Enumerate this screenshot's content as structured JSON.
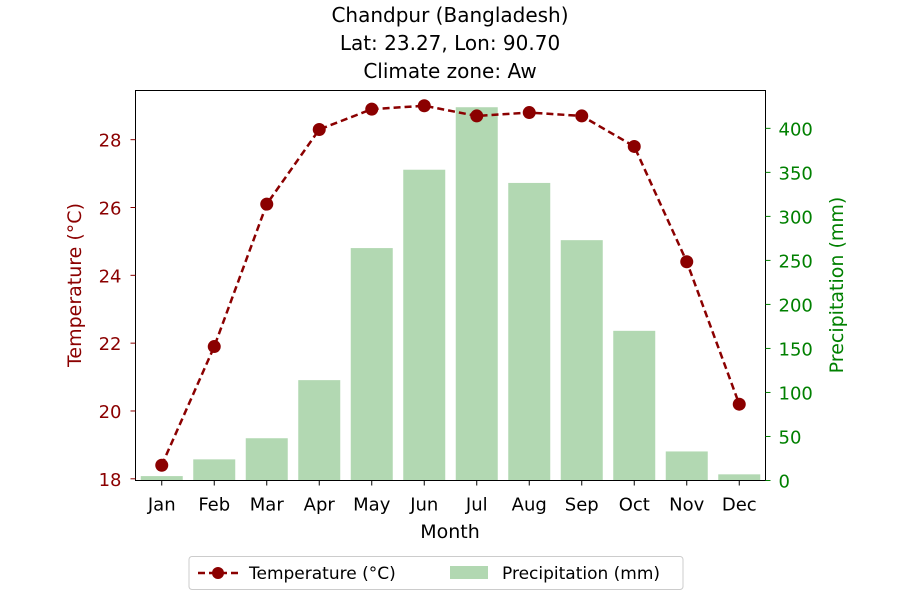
{
  "chart_data": {
    "type": "bar+line",
    "title_lines": [
      "Chandpur (Bangladesh)",
      "Lat: 23.27, Lon: 90.70",
      "Climate zone: Aw"
    ],
    "xlabel": "Month",
    "ylabel_left": "Temperature (°C)",
    "ylabel_right": "Precipitation (mm)",
    "categories": [
      "Jan",
      "Feb",
      "Mar",
      "Apr",
      "May",
      "Jun",
      "Jul",
      "Aug",
      "Sep",
      "Oct",
      "Nov",
      "Dec"
    ],
    "left_axis": {
      "ylim": [
        17.95,
        29.45
      ],
      "ticks": [
        18,
        20,
        22,
        24,
        26,
        28
      ]
    },
    "right_axis": {
      "ylim": [
        0,
        443
      ],
      "ticks": [
        0,
        50,
        100,
        150,
        200,
        250,
        300,
        350,
        400
      ]
    },
    "series": [
      {
        "name": "Temperature (°C)",
        "type": "line",
        "axis": "left",
        "color": "#8b0000",
        "style": "dashed",
        "marker": "circle",
        "values": [
          18.4,
          21.9,
          26.1,
          28.3,
          28.9,
          29.0,
          28.7,
          28.8,
          28.7,
          27.8,
          24.4,
          20.2
        ]
      },
      {
        "name": "Precipitation (mm)",
        "type": "bar",
        "axis": "right",
        "color": "#b2d8b2",
        "values": [
          5,
          24,
          48,
          114,
          264,
          353,
          424,
          338,
          273,
          170,
          33,
          7
        ]
      }
    ],
    "axis_colors": {
      "left": "#8b0000",
      "right": "#008000"
    },
    "legend": {
      "placement": "bottom-center",
      "columns": 2
    },
    "grid": false
  }
}
